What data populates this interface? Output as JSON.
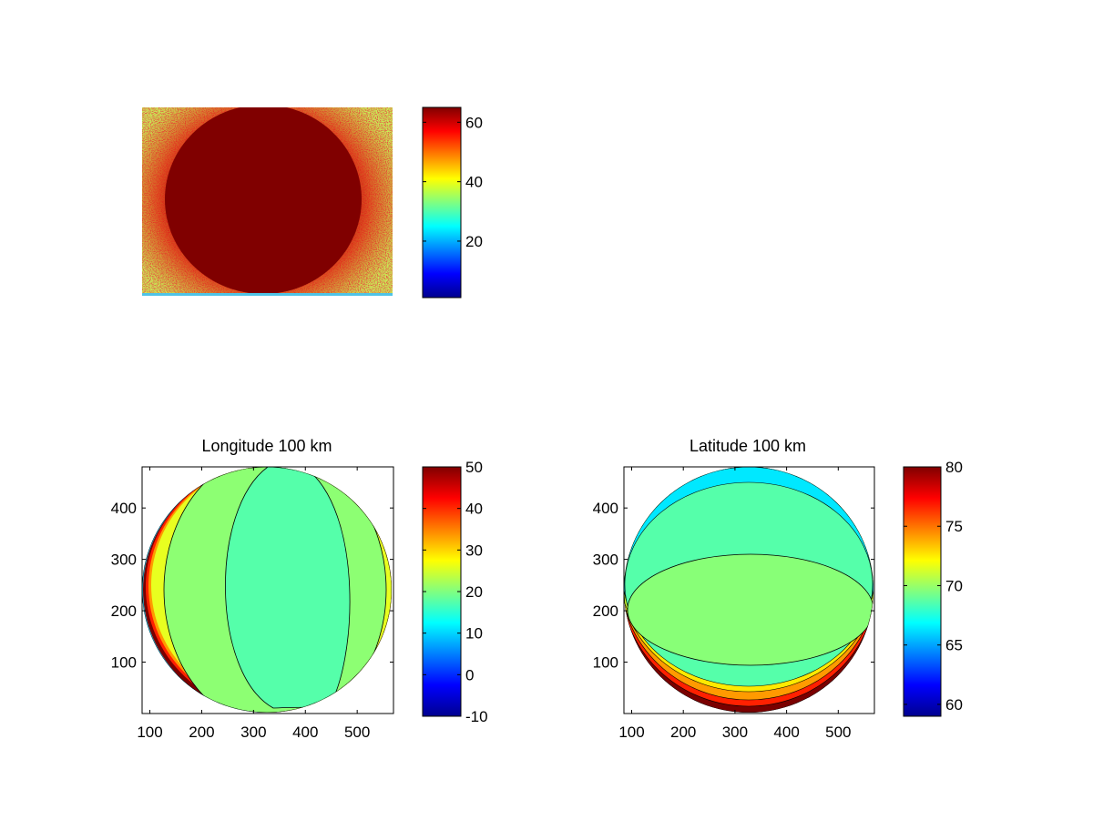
{
  "colormap": [
    "#00008f",
    "#0000ff",
    "#0080ff",
    "#00ffff",
    "#80ff80",
    "#ffff00",
    "#ff8000",
    "#ff0000",
    "#800000"
  ],
  "chart_data": [
    {
      "type": "heatmap",
      "title": "",
      "description_colors": {
        "background": "#c8ee55",
        "disk": "#800000",
        "halo": "#d01010"
      },
      "colorbar": {
        "clim": [
          1,
          65
        ],
        "ticks": [
          20,
          40,
          60
        ],
        "tick_labels": [
          "20",
          "40",
          "60"
        ]
      }
    },
    {
      "type": "heatmap",
      "title": "Longitude 100 km",
      "x_ticks": [
        100,
        200,
        300,
        400,
        500
      ],
      "x_tick_labels": [
        "100",
        "200",
        "300",
        "400",
        "500"
      ],
      "y_ticks": [
        100,
        200,
        300,
        400
      ],
      "y_tick_labels": [
        "100",
        "200",
        "300",
        "400"
      ],
      "xlim": [
        85,
        570
      ],
      "ylim": [
        0,
        480
      ],
      "disk": {
        "center_x": 328,
        "center_y": 240,
        "radius": 240
      },
      "colorbar": {
        "clim": [
          -10,
          50
        ],
        "ticks": [
          -10,
          0,
          10,
          20,
          30,
          40,
          50
        ],
        "tick_labels": [
          "-10",
          "0",
          "10",
          "20",
          "30",
          "40",
          "50"
        ]
      },
      "contour_values": [
        -10,
        -5,
        0,
        5,
        10,
        15,
        20,
        25,
        30,
        35,
        40
      ]
    },
    {
      "type": "heatmap",
      "title": "Latitude 100 km",
      "x_ticks": [
        100,
        200,
        300,
        400,
        500
      ],
      "x_tick_labels": [
        "100",
        "200",
        "300",
        "400",
        "500"
      ],
      "y_ticks": [
        100,
        200,
        300,
        400
      ],
      "y_tick_labels": [
        "100",
        "200",
        "300",
        "400"
      ],
      "xlim": [
        85,
        570
      ],
      "ylim": [
        0,
        480
      ],
      "disk": {
        "center_x": 328,
        "center_y": 240,
        "radius": 240
      },
      "colorbar": {
        "clim": [
          59,
          80
        ],
        "ticks": [
          60,
          65,
          70,
          75,
          80
        ],
        "tick_labels": [
          "60",
          "65",
          "70",
          "75",
          "80"
        ]
      },
      "contour_values": [
        60,
        62,
        64,
        66,
        68,
        70,
        72,
        74,
        76,
        78
      ]
    }
  ]
}
